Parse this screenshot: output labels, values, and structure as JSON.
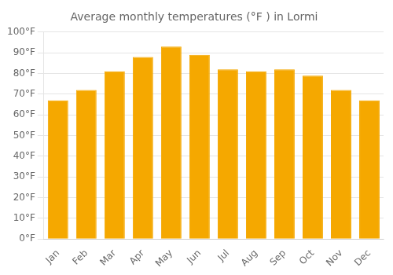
{
  "chart_data": {
    "type": "bar",
    "title": "Average monthly temperatures (°F ) in Lormi",
    "categories": [
      "Jan",
      "Feb",
      "Mar",
      "Apr",
      "May",
      "Jun",
      "Jul",
      "Aug",
      "Sep",
      "Oct",
      "Nov",
      "Dec"
    ],
    "values": [
      67,
      72,
      81,
      88,
      93,
      89,
      82,
      81,
      82,
      79,
      72,
      67
    ],
    "color": "#F5A800",
    "ylim": [
      0,
      100
    ],
    "yticks": [
      {
        "value": 0,
        "label": "0°F"
      },
      {
        "value": 10,
        "label": "10°F"
      },
      {
        "value": 20,
        "label": "20°F"
      },
      {
        "value": 30,
        "label": "30°F"
      },
      {
        "value": 40,
        "label": "40°F"
      },
      {
        "value": 50,
        "label": "50°F"
      },
      {
        "value": 60,
        "label": "60°F"
      },
      {
        "value": 70,
        "label": "70°F"
      },
      {
        "value": 80,
        "label": "80°F"
      },
      {
        "value": 90,
        "label": "90°F"
      },
      {
        "value": 100,
        "label": "100°F"
      }
    ],
    "grid": true
  }
}
